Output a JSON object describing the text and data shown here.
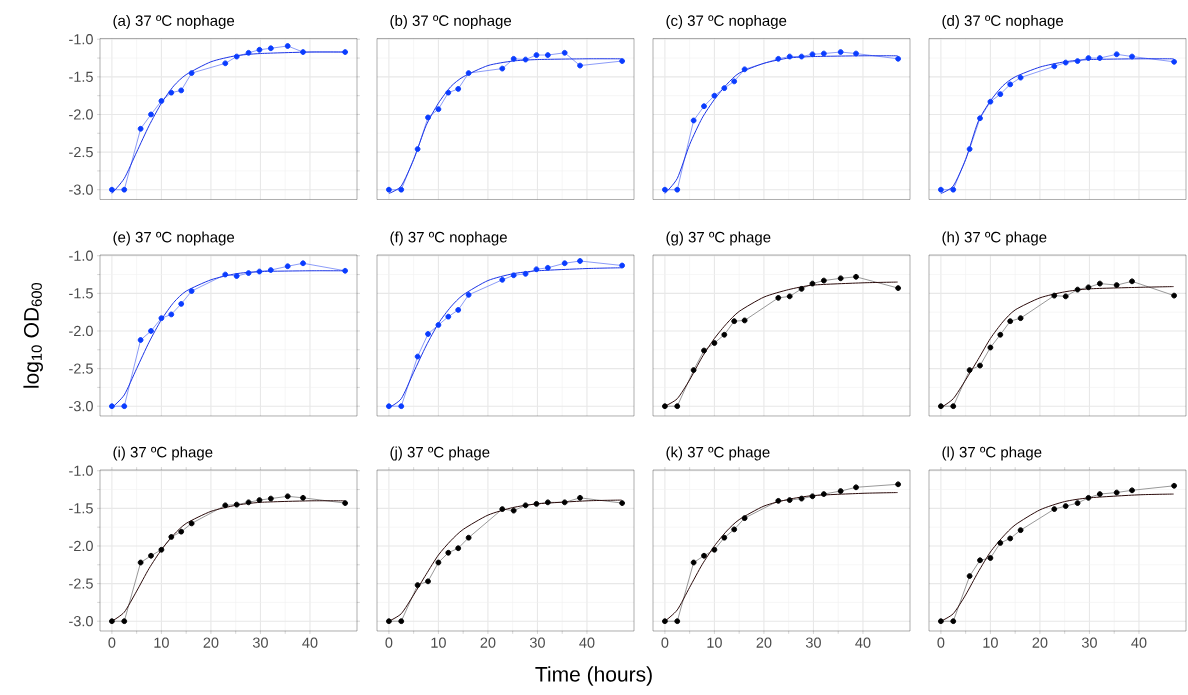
{
  "chart_data": [
    {
      "type": "scatter",
      "title": "(a) 37 ºC nophage",
      "tick_labels": "y",
      "grid": true,
      "xlim": [
        -2.4,
        49.5
      ],
      "ylim": [
        -3.13,
        -0.99
      ],
      "xticks": [
        0,
        10,
        20,
        30,
        40
      ],
      "yticks": [
        {
          "value": -3,
          "label": "-3.0"
        },
        -2.5,
        {
          "value": -2,
          "label": "-2.0"
        },
        -1.5,
        {
          "value": -1,
          "label": "-1.0"
        }
      ],
      "x": [
        0,
        2.5,
        5.8,
        7.9,
        10,
        12,
        14,
        16.1,
        22.9,
        25.2,
        27.6,
        29.8,
        32.1,
        35.5,
        38.6,
        47.1
      ],
      "series": [
        {
          "type": "line",
          "marker": "none",
          "color": "#8c9cf8",
          "values": [
            -3,
            -3,
            -2.19,
            -2.0,
            -1.82,
            -1.71,
            -1.68,
            -1.45,
            -1.32,
            -1.23,
            -1.18,
            -1.14,
            -1.12,
            -1.09,
            -1.17,
            -1.17
          ]
        },
        {
          "type": "line",
          "marker": "none",
          "color": "#1a33e6",
          "x": [
            0,
            2.5,
            5,
            7.5,
            10,
            12.5,
            15,
            20,
            25,
            30,
            40,
            47
          ],
          "values": [
            -3.05,
            -2.85,
            -2.5,
            -2.15,
            -1.85,
            -1.62,
            -1.47,
            -1.3,
            -1.22,
            -1.19,
            -1.17,
            -1.17
          ]
        },
        {
          "type": "scatter",
          "marker": "circle",
          "color": "#0a3cff",
          "values": [
            -3,
            -3,
            -2.19,
            -2.0,
            -1.82,
            -1.71,
            -1.68,
            -1.45,
            -1.32,
            -1.23,
            -1.18,
            -1.14,
            -1.12,
            -1.09,
            -1.17,
            -1.17
          ]
        }
      ]
    },
    {
      "type": "scatter",
      "title": "(b) 37 ºC nophage",
      "tick_labels": false,
      "grid": true,
      "xlim": [
        -2.4,
        49.5
      ],
      "ylim": [
        -3.13,
        -0.99
      ],
      "xticks": [
        0,
        10,
        20,
        30,
        40
      ],
      "yticks": [
        -3,
        -2.5,
        -2,
        -1.5,
        -1
      ],
      "x": [
        0,
        2.5,
        5.8,
        7.9,
        10,
        12,
        14,
        16.1,
        22.9,
        25.2,
        27.6,
        29.8,
        32.1,
        35.5,
        38.6,
        47.1
      ],
      "series": [
        {
          "type": "line",
          "marker": "none",
          "color": "#8c9cf8",
          "values": [
            -3,
            -3,
            -2.46,
            -2.04,
            -1.93,
            -1.71,
            -1.66,
            -1.45,
            -1.39,
            -1.26,
            -1.27,
            -1.21,
            -1.21,
            -1.18,
            -1.35,
            -1.29
          ]
        },
        {
          "type": "line",
          "marker": "none",
          "color": "#1a33e6",
          "x": [
            0,
            2.5,
            5,
            7.5,
            10,
            12.5,
            15,
            20,
            25,
            30,
            40,
            47
          ],
          "values": [
            -3.05,
            -2.95,
            -2.6,
            -2.15,
            -1.85,
            -1.63,
            -1.5,
            -1.35,
            -1.29,
            -1.27,
            -1.26,
            -1.26
          ]
        },
        {
          "type": "scatter",
          "marker": "circle",
          "color": "#0a3cff",
          "values": [
            -3,
            -3,
            -2.46,
            -2.04,
            -1.93,
            -1.71,
            -1.66,
            -1.45,
            -1.39,
            -1.26,
            -1.27,
            -1.21,
            -1.21,
            -1.18,
            -1.35,
            -1.29
          ]
        }
      ]
    },
    {
      "type": "scatter",
      "title": "(c) 37 ºC nophage",
      "tick_labels": false,
      "grid": true,
      "xlim": [
        -2.4,
        49.5
      ],
      "ylim": [
        -3.13,
        -0.99
      ],
      "xticks": [
        0,
        10,
        20,
        30,
        40
      ],
      "yticks": [
        -3,
        -2.5,
        -2,
        -1.5,
        -1
      ],
      "x": [
        0,
        2.5,
        5.8,
        7.9,
        10,
        12,
        14,
        16.1,
        22.9,
        25.2,
        27.6,
        29.8,
        32.1,
        35.5,
        38.6,
        47.1
      ],
      "series": [
        {
          "type": "line",
          "marker": "none",
          "color": "#8c9cf8",
          "values": [
            -3,
            -3,
            -2.08,
            -1.89,
            -1.75,
            -1.65,
            -1.56,
            -1.4,
            -1.26,
            -1.23,
            -1.23,
            -1.2,
            -1.19,
            -1.17,
            -1.19,
            -1.26
          ]
        },
        {
          "type": "line",
          "marker": "none",
          "color": "#1a33e6",
          "x": [
            0,
            2.5,
            5,
            7.5,
            10,
            12.5,
            15,
            20,
            25,
            30,
            40,
            47
          ],
          "values": [
            -3.05,
            -2.85,
            -2.4,
            -2.05,
            -1.8,
            -1.6,
            -1.45,
            -1.32,
            -1.25,
            -1.23,
            -1.22,
            -1.22
          ]
        },
        {
          "type": "scatter",
          "marker": "circle",
          "color": "#0a3cff",
          "values": [
            -3,
            -3,
            -2.08,
            -1.89,
            -1.75,
            -1.65,
            -1.56,
            -1.4,
            -1.26,
            -1.23,
            -1.23,
            -1.2,
            -1.19,
            -1.17,
            -1.19,
            -1.26
          ]
        }
      ]
    },
    {
      "type": "scatter",
      "title": "(d) 37 ºC nophage",
      "tick_labels": false,
      "grid": true,
      "xlim": [
        -2.4,
        49.5
      ],
      "ylim": [
        -3.13,
        -0.99
      ],
      "xticks": [
        0,
        10,
        20,
        30,
        40
      ],
      "yticks": [
        -3,
        -2.5,
        -2,
        -1.5,
        -1
      ],
      "x": [
        0,
        2.5,
        5.8,
        7.9,
        10,
        12,
        14,
        16.1,
        22.9,
        25.2,
        27.6,
        29.8,
        32.1,
        35.5,
        38.6,
        47.1
      ],
      "series": [
        {
          "type": "line",
          "marker": "none",
          "color": "#8c9cf8",
          "values": [
            -3,
            -3,
            -2.46,
            -2.05,
            -1.83,
            -1.73,
            -1.6,
            -1.51,
            -1.36,
            -1.31,
            -1.29,
            -1.25,
            -1.25,
            -1.2,
            -1.23,
            -1.3
          ]
        },
        {
          "type": "line",
          "marker": "none",
          "color": "#1a33e6",
          "x": [
            0,
            2.5,
            5,
            7.5,
            10,
            12.5,
            15,
            20,
            25,
            30,
            40,
            47
          ],
          "values": [
            -3.05,
            -2.95,
            -2.6,
            -2.1,
            -1.82,
            -1.62,
            -1.5,
            -1.37,
            -1.3,
            -1.27,
            -1.26,
            -1.26
          ]
        },
        {
          "type": "scatter",
          "marker": "circle",
          "color": "#0a3cff",
          "values": [
            -3,
            -3,
            -2.46,
            -2.05,
            -1.83,
            -1.73,
            -1.6,
            -1.51,
            -1.36,
            -1.31,
            -1.29,
            -1.25,
            -1.25,
            -1.2,
            -1.23,
            -1.3
          ]
        }
      ]
    },
    {
      "type": "scatter",
      "title": "(e) 37 ºC nophage",
      "ylabel": "log$_{10}$ OD$_{600}$",
      "tick_labels": "y",
      "grid": true,
      "xlim": [
        -2.4,
        49.5
      ],
      "ylim": [
        -3.13,
        -0.99
      ],
      "xticks": [
        0,
        10,
        20,
        30,
        40
      ],
      "yticks": [
        {
          "value": -3,
          "label": "-3.0"
        },
        -2.5,
        {
          "value": -2,
          "label": "-2.0"
        },
        -1.5,
        {
          "value": -1,
          "label": "-1.0"
        }
      ],
      "x": [
        0,
        2.5,
        5.8,
        7.9,
        10,
        12,
        14,
        16.1,
        22.9,
        25.2,
        27.6,
        29.8,
        32.1,
        35.5,
        38.6,
        47.1
      ],
      "series": [
        {
          "type": "line",
          "marker": "none",
          "color": "#8c9cf8",
          "values": [
            -3,
            -3,
            -2.12,
            -2.0,
            -1.83,
            -1.78,
            -1.64,
            -1.47,
            -1.25,
            -1.27,
            -1.23,
            -1.21,
            -1.19,
            -1.14,
            -1.1,
            -1.2
          ]
        },
        {
          "type": "line",
          "marker": "none",
          "color": "#1a33e6",
          "x": [
            0,
            2.5,
            5,
            7.5,
            10,
            12.5,
            15,
            20,
            25,
            30,
            40,
            47
          ],
          "values": [
            -3.02,
            -2.85,
            -2.5,
            -2.15,
            -1.85,
            -1.62,
            -1.47,
            -1.32,
            -1.24,
            -1.21,
            -1.2,
            -1.2
          ]
        },
        {
          "type": "scatter",
          "marker": "circle",
          "color": "#0a3cff",
          "values": [
            -3,
            -3,
            -2.12,
            -2.0,
            -1.83,
            -1.78,
            -1.64,
            -1.47,
            -1.25,
            -1.27,
            -1.23,
            -1.21,
            -1.19,
            -1.14,
            -1.1,
            -1.2
          ]
        }
      ]
    },
    {
      "type": "scatter",
      "title": "(f) 37 ºC nophage",
      "tick_labels": false,
      "grid": true,
      "xlim": [
        -2.4,
        49.5
      ],
      "ylim": [
        -3.13,
        -0.99
      ],
      "xticks": [
        0,
        10,
        20,
        30,
        40
      ],
      "yticks": [
        -3,
        -2.5,
        -2,
        -1.5,
        -1
      ],
      "x": [
        0,
        2.5,
        5.8,
        7.9,
        10,
        12,
        14,
        16.1,
        22.9,
        25.2,
        27.6,
        29.8,
        32.1,
        35.5,
        38.6,
        47.1
      ],
      "series": [
        {
          "type": "line",
          "marker": "none",
          "color": "#8c9cf8",
          "values": [
            -3,
            -3,
            -2.34,
            -2.04,
            -1.92,
            -1.81,
            -1.72,
            -1.52,
            -1.32,
            -1.26,
            -1.24,
            -1.18,
            -1.16,
            -1.1,
            -1.07,
            -1.13
          ]
        },
        {
          "type": "line",
          "marker": "none",
          "color": "#1a33e6",
          "x": [
            0,
            2.5,
            5,
            7.5,
            10,
            12.5,
            15,
            20,
            25,
            30,
            40,
            47
          ],
          "values": [
            -3.02,
            -2.9,
            -2.55,
            -2.2,
            -1.9,
            -1.68,
            -1.52,
            -1.33,
            -1.24,
            -1.2,
            -1.17,
            -1.16
          ]
        },
        {
          "type": "scatter",
          "marker": "circle",
          "color": "#0a3cff",
          "values": [
            -3,
            -3,
            -2.34,
            -2.04,
            -1.92,
            -1.81,
            -1.72,
            -1.52,
            -1.32,
            -1.26,
            -1.24,
            -1.18,
            -1.16,
            -1.1,
            -1.07,
            -1.13
          ]
        }
      ]
    },
    {
      "type": "scatter",
      "title": "(g) 37 ºC phage",
      "tick_labels": false,
      "grid": true,
      "xlim": [
        -2.4,
        49.5
      ],
      "ylim": [
        -3.13,
        -0.99
      ],
      "xticks": [
        0,
        10,
        20,
        30,
        40
      ],
      "yticks": [
        -3,
        -2.5,
        -2,
        -1.5,
        -1
      ],
      "x": [
        0,
        2.5,
        5.8,
        7.9,
        10,
        12,
        14,
        16.1,
        22.9,
        25.2,
        27.6,
        29.8,
        32.1,
        35.5,
        38.6,
        47.1
      ],
      "series": [
        {
          "type": "line",
          "marker": "none",
          "color": "#999999",
          "values": [
            -3,
            -3,
            -2.52,
            -2.26,
            -2.16,
            -2.05,
            -1.87,
            -1.86,
            -1.56,
            -1.54,
            -1.44,
            -1.37,
            -1.33,
            -1.3,
            -1.28,
            -1.43
          ]
        },
        {
          "type": "line",
          "marker": "none",
          "color": "#2a0a0a",
          "x": [
            0,
            2.5,
            5,
            7.5,
            10,
            12.5,
            15,
            20,
            25,
            30,
            40,
            47
          ],
          "values": [
            -3.0,
            -2.9,
            -2.65,
            -2.35,
            -2.1,
            -1.9,
            -1.74,
            -1.55,
            -1.45,
            -1.39,
            -1.36,
            -1.35
          ]
        },
        {
          "type": "scatter",
          "marker": "circle",
          "color": "#000000",
          "values": [
            -3,
            -3,
            -2.52,
            -2.26,
            -2.16,
            -2.05,
            -1.87,
            -1.86,
            -1.56,
            -1.54,
            -1.44,
            -1.37,
            -1.33,
            -1.3,
            -1.28,
            -1.43
          ]
        }
      ]
    },
    {
      "type": "scatter",
      "title": "(h) 37 ºC phage",
      "tick_labels": false,
      "grid": true,
      "xlim": [
        -2.4,
        49.5
      ],
      "ylim": [
        -3.13,
        -0.99
      ],
      "xticks": [
        0,
        10,
        20,
        30,
        40
      ],
      "yticks": [
        -3,
        -2.5,
        -2,
        -1.5,
        -1
      ],
      "x": [
        0,
        2.5,
        5.8,
        7.9,
        10,
        12,
        14,
        16.1,
        22.9,
        25.2,
        27.6,
        29.8,
        32.1,
        35.5,
        38.6,
        47.1
      ],
      "series": [
        {
          "type": "line",
          "marker": "none",
          "color": "#999999",
          "values": [
            -3,
            -3,
            -2.52,
            -2.46,
            -2.22,
            -2.05,
            -1.87,
            -1.83,
            -1.53,
            -1.54,
            -1.45,
            -1.42,
            -1.37,
            -1.39,
            -1.34,
            -1.53
          ]
        },
        {
          "type": "line",
          "marker": "none",
          "color": "#2a0a0a",
          "x": [
            0,
            2.5,
            5,
            7.5,
            10,
            12.5,
            15,
            20,
            25,
            30,
            40,
            47
          ],
          "values": [
            -3.02,
            -2.9,
            -2.65,
            -2.38,
            -2.1,
            -1.88,
            -1.72,
            -1.56,
            -1.48,
            -1.44,
            -1.42,
            -1.41
          ]
        },
        {
          "type": "scatter",
          "marker": "circle",
          "color": "#000000",
          "values": [
            -3,
            -3,
            -2.52,
            -2.46,
            -2.22,
            -2.05,
            -1.87,
            -1.83,
            -1.53,
            -1.54,
            -1.45,
            -1.42,
            -1.37,
            -1.39,
            -1.34,
            -1.53
          ]
        }
      ]
    },
    {
      "type": "scatter",
      "title": "(i) 37 ºC phage",
      "grid": true,
      "xlim": [
        -2.4,
        49.5
      ],
      "ylim": [
        -3.13,
        -0.99
      ],
      "xticks": [
        0,
        10,
        20,
        30,
        40
      ],
      "yticks": [
        {
          "value": -3,
          "label": "-3.0"
        },
        -2.5,
        {
          "value": -2,
          "label": "-2.0"
        },
        -1.5,
        {
          "value": -1,
          "label": "-1.0"
        }
      ],
      "x": [
        0,
        2.5,
        5.8,
        7.9,
        10,
        12,
        14,
        16.1,
        22.9,
        25.2,
        27.6,
        29.8,
        32.1,
        35.5,
        38.6,
        47.1
      ],
      "series": [
        {
          "type": "line",
          "marker": "none",
          "color": "#999999",
          "values": [
            -3,
            -3,
            -2.22,
            -2.13,
            -2.05,
            -1.88,
            -1.81,
            -1.7,
            -1.46,
            -1.45,
            -1.42,
            -1.39,
            -1.37,
            -1.34,
            -1.36,
            -1.43
          ]
        },
        {
          "type": "line",
          "marker": "none",
          "color": "#2a0a0a",
          "x": [
            0,
            2.5,
            5,
            7.5,
            10,
            12.5,
            15,
            20,
            25,
            30,
            40,
            47
          ],
          "values": [
            -3.0,
            -2.88,
            -2.6,
            -2.3,
            -2.05,
            -1.85,
            -1.7,
            -1.54,
            -1.46,
            -1.42,
            -1.4,
            -1.4
          ]
        },
        {
          "type": "scatter",
          "marker": "circle",
          "color": "#000000",
          "values": [
            -3,
            -3,
            -2.22,
            -2.13,
            -2.05,
            -1.88,
            -1.81,
            -1.7,
            -1.46,
            -1.45,
            -1.42,
            -1.39,
            -1.37,
            -1.34,
            -1.36,
            -1.43
          ]
        }
      ]
    },
    {
      "type": "scatter",
      "title": "(j) 37 ºC phage",
      "xlabel": "Time (hours)",
      "tick_labels": "x",
      "grid": true,
      "xlim": [
        -2.4,
        49.5
      ],
      "ylim": [
        -3.13,
        -0.99
      ],
      "xticks": [
        0,
        10,
        20,
        30,
        40
      ],
      "yticks": [
        -3,
        -2.5,
        -2,
        -1.5,
        -1
      ],
      "x": [
        0,
        2.5,
        5.8,
        7.9,
        10,
        12,
        14,
        16.1,
        22.9,
        25.2,
        27.6,
        29.8,
        32.1,
        35.5,
        38.6,
        47.1
      ],
      "series": [
        {
          "type": "line",
          "marker": "none",
          "color": "#999999",
          "values": [
            -3,
            -3,
            -2.52,
            -2.47,
            -2.22,
            -2.09,
            -2.03,
            -1.89,
            -1.51,
            -1.53,
            -1.46,
            -1.44,
            -1.42,
            -1.42,
            -1.36,
            -1.43
          ]
        },
        {
          "type": "line",
          "marker": "none",
          "color": "#2a0a0a",
          "x": [
            0,
            2.5,
            5,
            7.5,
            10,
            12.5,
            15,
            20,
            25,
            30,
            40,
            47
          ],
          "values": [
            -3.0,
            -2.9,
            -2.65,
            -2.38,
            -2.12,
            -1.93,
            -1.78,
            -1.59,
            -1.49,
            -1.44,
            -1.4,
            -1.39
          ]
        },
        {
          "type": "scatter",
          "marker": "circle",
          "color": "#000000",
          "values": [
            -3,
            -3,
            -2.52,
            -2.47,
            -2.22,
            -2.09,
            -2.03,
            -1.89,
            -1.51,
            -1.53,
            -1.46,
            -1.44,
            -1.42,
            -1.42,
            -1.36,
            -1.43
          ]
        }
      ]
    },
    {
      "type": "scatter",
      "title": "(k) 37 ºC phage",
      "tick_labels": "x",
      "grid": true,
      "xlim": [
        -2.4,
        49.5
      ],
      "ylim": [
        -3.13,
        -0.99
      ],
      "xticks": [
        0,
        10,
        20,
        30,
        40
      ],
      "yticks": [
        -3,
        -2.5,
        -2,
        -1.5,
        -1
      ],
      "x": [
        0,
        2.5,
        5.8,
        7.9,
        10,
        12,
        14,
        16.1,
        22.9,
        25.2,
        27.6,
        29.8,
        32.1,
        35.5,
        38.6,
        47.1
      ],
      "series": [
        {
          "type": "line",
          "marker": "none",
          "color": "#999999",
          "values": [
            -3,
            -3,
            -2.22,
            -2.13,
            -2.05,
            -1.89,
            -1.78,
            -1.63,
            -1.4,
            -1.39,
            -1.37,
            -1.34,
            -1.31,
            -1.27,
            -1.22,
            -1.18
          ]
        },
        {
          "type": "line",
          "marker": "none",
          "color": "#2a0a0a",
          "x": [
            0,
            2.5,
            5,
            7.5,
            10,
            12.5,
            15,
            20,
            25,
            30,
            40,
            47
          ],
          "values": [
            -3.0,
            -2.85,
            -2.55,
            -2.25,
            -2.0,
            -1.8,
            -1.65,
            -1.47,
            -1.38,
            -1.33,
            -1.3,
            -1.29
          ]
        },
        {
          "type": "scatter",
          "marker": "circle",
          "color": "#000000",
          "values": [
            -3,
            -3,
            -2.22,
            -2.13,
            -2.05,
            -1.89,
            -1.78,
            -1.63,
            -1.4,
            -1.39,
            -1.37,
            -1.34,
            -1.31,
            -1.27,
            -1.22,
            -1.18
          ]
        }
      ]
    },
    {
      "type": "scatter",
      "title": "(l) 37 ºC phage",
      "tick_labels": "x",
      "grid": true,
      "xlim": [
        -2.4,
        49.5
      ],
      "ylim": [
        -3.13,
        -0.99
      ],
      "xticks": [
        0,
        10,
        20,
        30,
        40
      ],
      "yticks": [
        -3,
        -2.5,
        -2,
        -1.5,
        -1
      ],
      "x": [
        0,
        2.5,
        5.8,
        7.9,
        10,
        12,
        14,
        16.1,
        22.9,
        25.2,
        27.6,
        29.8,
        32.1,
        35.5,
        38.6,
        47.1
      ],
      "series": [
        {
          "type": "line",
          "marker": "none",
          "color": "#999999",
          "values": [
            -3,
            -3,
            -2.4,
            -2.19,
            -2.16,
            -1.96,
            -1.9,
            -1.79,
            -1.51,
            -1.47,
            -1.43,
            -1.36,
            -1.31,
            -1.29,
            -1.26,
            -1.2
          ]
        },
        {
          "type": "line",
          "marker": "none",
          "color": "#2a0a0a",
          "x": [
            0,
            2.5,
            5,
            7.5,
            10,
            12.5,
            15,
            20,
            25,
            30,
            40,
            47
          ],
          "values": [
            -3.0,
            -2.9,
            -2.65,
            -2.35,
            -2.08,
            -1.88,
            -1.72,
            -1.52,
            -1.41,
            -1.36,
            -1.32,
            -1.31
          ]
        },
        {
          "type": "scatter",
          "marker": "circle",
          "color": "#000000",
          "values": [
            -3,
            -3,
            -2.4,
            -2.19,
            -2.16,
            -1.96,
            -1.9,
            -1.79,
            -1.51,
            -1.47,
            -1.43,
            -1.36,
            -1.31,
            -1.29,
            -1.26,
            -1.2
          ]
        }
      ]
    }
  ]
}
